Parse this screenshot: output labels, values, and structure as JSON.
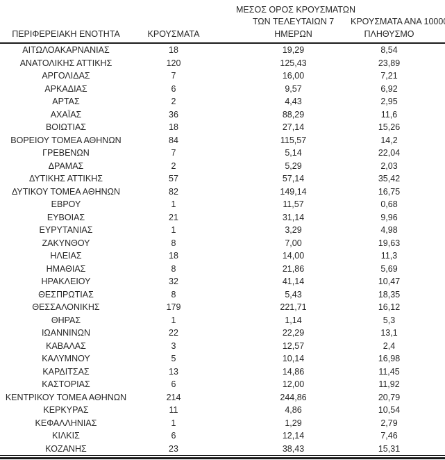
{
  "page": {
    "background_color": "#ffffff",
    "text_color": "#262626",
    "rule_color": "#1a1a1a"
  },
  "table": {
    "columns": [
      {
        "id": "region",
        "label": "ΠΕΡΙΦΕΡΕΙΑΚΗ ΕΝΟΤΗΤΑ"
      },
      {
        "id": "cases",
        "label": "ΚΡΟΥΣΜΑΤΑ"
      },
      {
        "id": "avg7days",
        "label": "ΜΕΣΟΣ ΟΡΟΣ ΚΡΟΥΣΜΑΤΩΝ\nΤΩΝ ΤΕΛΕΥΤΑΙΩΝ 7\nΗΜΕΡΩΝ"
      },
      {
        "id": "per100k",
        "label": "ΚΡΟΥΣΜΑΤΑ ΑΝΑ 100000\nΠΛΗΘΥΣΜΟ"
      }
    ],
    "rows": [
      [
        "ΑΙΤΩΛΟΑΚΑΡΝΑΝΙΑΣ",
        "18",
        "19,29",
        "8,54"
      ],
      [
        "ΑΝΑΤΟΛΙΚΗΣ ΑΤΤΙΚΗΣ",
        "120",
        "125,43",
        "23,89"
      ],
      [
        "ΑΡΓΟΛΙΔΑΣ",
        "7",
        "16,00",
        "7,21"
      ],
      [
        "ΑΡΚΑΔΙΑΣ",
        "6",
        "9,57",
        "6,92"
      ],
      [
        "ΑΡΤΑΣ",
        "2",
        "4,43",
        "2,95"
      ],
      [
        "ΑΧΑΪΑΣ",
        "36",
        "88,29",
        "11,6"
      ],
      [
        "ΒΟΙΩΤΙΑΣ",
        "18",
        "27,14",
        "15,26"
      ],
      [
        "ΒΟΡΕΙΟΥ ΤΟΜΕΑ ΑΘΗΝΩΝ",
        "84",
        "115,57",
        "14,2"
      ],
      [
        "ΓΡΕΒΕΝΩΝ",
        "7",
        "5,14",
        "22,04"
      ],
      [
        "ΔΡΑΜΑΣ",
        "2",
        "5,29",
        "2,03"
      ],
      [
        "ΔΥΤΙΚΗΣ ΑΤΤΙΚΗΣ",
        "57",
        "57,14",
        "35,42"
      ],
      [
        "ΔΥΤΙΚΟΥ ΤΟΜΕΑ ΑΘΗΝΩΝ",
        "82",
        "149,14",
        "16,75"
      ],
      [
        "ΕΒΡΟΥ",
        "1",
        "11,57",
        "0,68"
      ],
      [
        "ΕΥΒΟΙΑΣ",
        "21",
        "31,14",
        "9,96"
      ],
      [
        "ΕΥΡΥΤΑΝΙΑΣ",
        "1",
        "3,29",
        "4,98"
      ],
      [
        "ΖΑΚΥΝΘΟΥ",
        "8",
        "7,00",
        "19,63"
      ],
      [
        "ΗΛΕΙΑΣ",
        "18",
        "14,00",
        "11,3"
      ],
      [
        "ΗΜΑΘΙΑΣ",
        "8",
        "21,86",
        "5,69"
      ],
      [
        "ΗΡΑΚΛΕΙΟΥ",
        "32",
        "41,14",
        "10,47"
      ],
      [
        "ΘΕΣΠΡΩΤΙΑΣ",
        "8",
        "5,43",
        "18,35"
      ],
      [
        "ΘΕΣΣΑΛΟΝΙΚΗΣ",
        "179",
        "221,71",
        "16,12"
      ],
      [
        "ΘΗΡΑΣ",
        "1",
        "1,14",
        "5,3"
      ],
      [
        "ΙΩΑΝΝΙΝΩΝ",
        "22",
        "22,29",
        "13,1"
      ],
      [
        "ΚΑΒΑΛΑΣ",
        "3",
        "12,57",
        "2,4"
      ],
      [
        "ΚΑΛΥΜΝΟΥ",
        "5",
        "10,14",
        "16,98"
      ],
      [
        "ΚΑΡΔΙΤΣΑΣ",
        "13",
        "14,86",
        "11,45"
      ],
      [
        "ΚΑΣΤΟΡΙΑΣ",
        "6",
        "12,00",
        "11,92"
      ],
      [
        "ΚΕΝΤΡΙΚΟΥ ΤΟΜΕΑ ΑΘΗΝΩΝ",
        "214",
        "244,86",
        "20,79"
      ],
      [
        "ΚΕΡΚΥΡΑΣ",
        "11",
        "4,86",
        "10,54"
      ],
      [
        "ΚΕΦΑΛΛΗΝΙΑΣ",
        "1",
        "1,29",
        "2,79"
      ],
      [
        "ΚΙΛΚΙΣ",
        "6",
        "12,14",
        "7,46"
      ],
      [
        "ΚΟΖΑΝΗΣ",
        "23",
        "38,43",
        "15,31"
      ]
    ]
  }
}
